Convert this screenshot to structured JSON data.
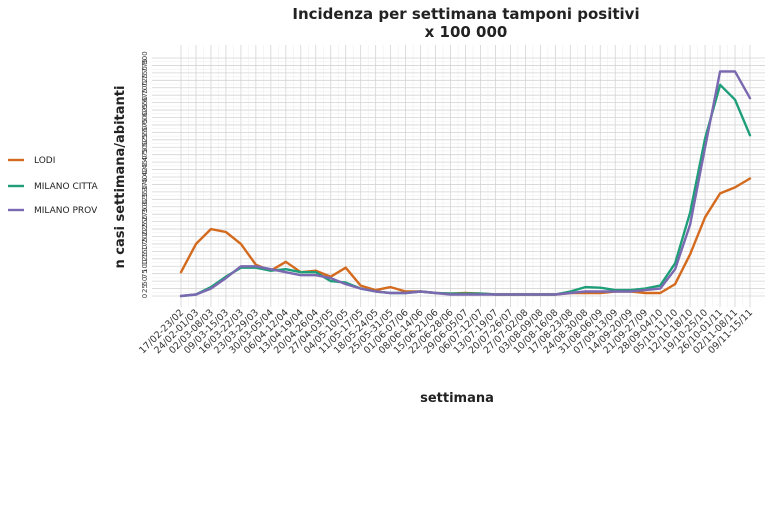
{
  "chart_data": {
    "type": "line",
    "title_line1": "Incidenza per settimana tamponi positivi",
    "title_line2": "x 100 000",
    "xlabel": "settimana",
    "ylabel": "n casi settimana/abitanti",
    "ylim": [
      0,
      800
    ],
    "yticks": [
      "0",
      "25",
      "50",
      "75",
      "100",
      "125",
      "150",
      "175",
      "200",
      "225",
      "250",
      "275",
      "300",
      "325",
      "350",
      "375",
      "400",
      "425",
      "450",
      "475",
      "500",
      "525",
      "550",
      "575",
      "600",
      "625",
      "650",
      "675",
      "700",
      "725",
      "750",
      "775",
      "800"
    ],
    "grid": true,
    "legend_position": "left",
    "categories": [
      "17/02-23/02",
      "24/02-01/03",
      "02/03-08/03",
      "09/03-15/03",
      "16/03-22/03",
      "23/03-29/03",
      "30/03-05/04",
      "06/04-12/04",
      "13/04-19/04",
      "20/04-26/04",
      "27/04-03/05",
      "04/05-10/05",
      "11/05-17/05",
      "18/05-24/05",
      "25/05-31/05",
      "01/06-07/06",
      "08/06-14/06",
      "15/06-21/06",
      "22/06-28/06",
      "29/06-05/07",
      "06/07-12/07",
      "13/07-19/07",
      "20/07-26/07",
      "27/07-02/08",
      "03/08-09/08",
      "10/08-16/08",
      "17/08-23/08",
      "24/08-30/08",
      "31/08-06/09",
      "07/09-13/09",
      "14/09-20/09",
      "21/09-27/09",
      "28/09-04/10",
      "05/10-11/10",
      "12/10-18/10",
      "19/10-25/10",
      "26/10-01/11",
      "02/11-08/11",
      "09/11-15/11"
    ],
    "series": [
      {
        "name": "LODI",
        "color": "#d46a1e",
        "values": [
          80,
          175,
          225,
          215,
          175,
          105,
          85,
          115,
          80,
          85,
          65,
          95,
          35,
          20,
          30,
          15,
          15,
          10,
          8,
          10,
          8,
          5,
          5,
          5,
          5,
          5,
          10,
          10,
          10,
          15,
          15,
          10,
          10,
          40,
          140,
          265,
          345,
          365,
          395
        ]
      },
      {
        "name": "MILANO CITTA",
        "color": "#1f9e7a",
        "values": [
          0,
          5,
          30,
          65,
          95,
          95,
          85,
          90,
          80,
          80,
          50,
          45,
          25,
          15,
          10,
          10,
          15,
          10,
          8,
          8,
          8,
          5,
          5,
          5,
          5,
          5,
          15,
          30,
          28,
          20,
          20,
          25,
          35,
          110,
          280,
          530,
          710,
          660,
          540
        ]
      },
      {
        "name": "MILANO PROV",
        "color": "#7a68b0",
        "values": [
          0,
          5,
          25,
          60,
          100,
          100,
          90,
          80,
          70,
          70,
          60,
          40,
          25,
          15,
          10,
          10,
          15,
          10,
          5,
          5,
          5,
          5,
          5,
          5,
          5,
          5,
          10,
          15,
          15,
          15,
          15,
          20,
          25,
          90,
          240,
          500,
          755,
          755,
          665
        ]
      }
    ]
  }
}
